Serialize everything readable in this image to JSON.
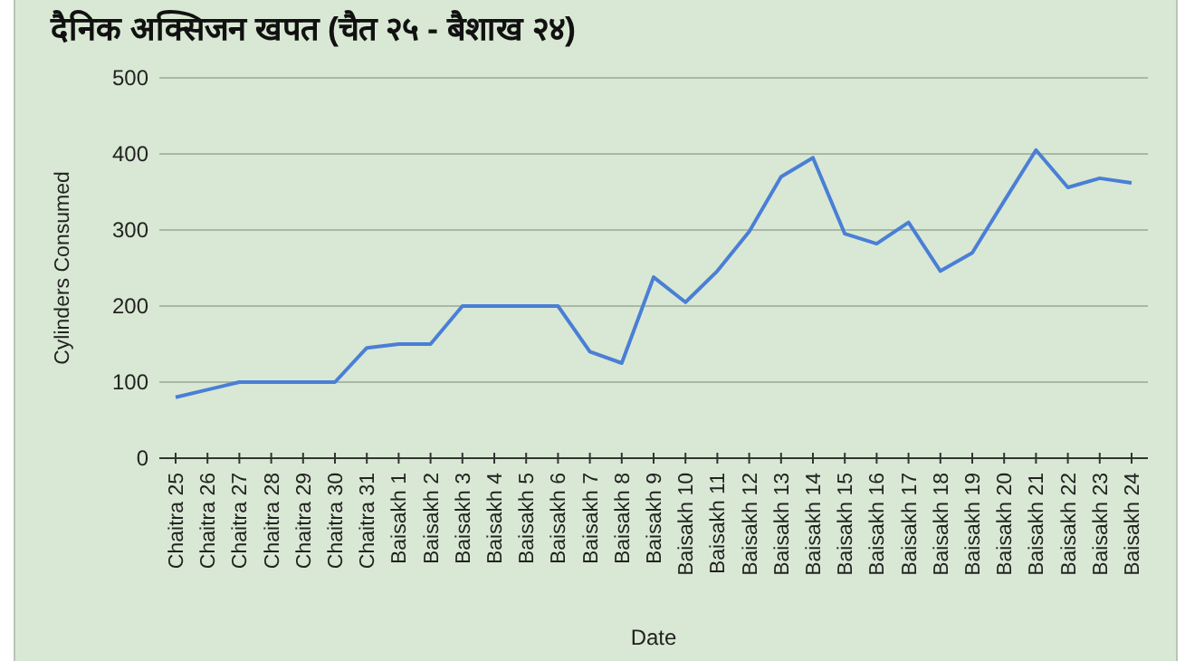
{
  "chart_data": {
    "type": "line",
    "title": "दैनिक अक्सिजन खपत (चैत २५ - बैशाख २४)",
    "xlabel": "Date",
    "ylabel": "Cylinders Consumed",
    "categories": [
      "Chaitra 25",
      "Chaitra 26",
      "Chaitra 27",
      "Chaitra 28",
      "Chaitra 29",
      "Chaitra 30",
      "Chaitra 31",
      "Baisakh 1",
      "Baisakh 2",
      "Baisakh 3",
      "Baisakh 4",
      "Baisakh 5",
      "Baisakh 6",
      "Baisakh 7",
      "Baisakh 8",
      "Baisakh 9",
      "Baisakh 10",
      "Baisakh 11",
      "Baisakh 12",
      "Baisakh 13",
      "Baisakh 14",
      "Baisakh 15",
      "Baisakh 16",
      "Baisakh 17",
      "Baisakh 18",
      "Baisakh 19",
      "Baisakh 20",
      "Baisakh 21",
      "Baisakh 22",
      "Baisakh 23",
      "Baisakh 24"
    ],
    "series": [
      {
        "color": "#4a7fd6",
        "values": [
          80,
          90,
          100,
          100,
          100,
          100,
          145,
          150,
          150,
          200,
          200,
          200,
          200,
          140,
          125,
          238,
          205,
          246,
          298,
          370,
          395,
          295,
          282,
          310,
          246,
          270,
          338,
          405,
          356,
          368,
          362
        ]
      }
    ],
    "ylim": [
      0,
      500
    ],
    "yticks": [
      0,
      100,
      200,
      300,
      400,
      500
    ],
    "grid": "y",
    "marker": "none",
    "line_style": "solid"
  }
}
